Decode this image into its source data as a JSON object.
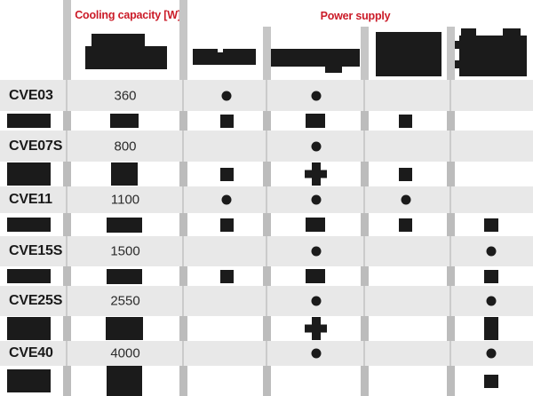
{
  "colors": {
    "accent_red": "#cb1b28",
    "row_gray": "#e8e8e8",
    "ink_black": "#1b1b1b",
    "divider_gray": "#c2c2c2"
  },
  "headers": {
    "capacity_label": "Cooling capacity [W]",
    "power_label": "Power supply"
  },
  "table": {
    "rows": [
      {
        "model": "CVE03",
        "capacity": "360",
        "dots": {
          "c3": true,
          "c4": true,
          "c5": false,
          "c6": false
        },
        "sub": {
          "c1": "bar",
          "c2": "bar",
          "c3": "bar",
          "c4": "bar",
          "c5": "bar",
          "c6": ""
        }
      },
      {
        "model": "CVE07S",
        "capacity": "800",
        "dots": {
          "c3": false,
          "c4": true,
          "c5": false,
          "c6": false
        },
        "sub": {
          "c1": "bar-tall",
          "c2": "bar-tall",
          "c3": "bar",
          "c4": "plus",
          "c5": "bar",
          "c6": ""
        }
      },
      {
        "model": "CVE11",
        "capacity": "1100",
        "dots": {
          "c3": true,
          "c4": true,
          "c5": true,
          "c6": false
        },
        "sub": {
          "c1": "bar",
          "c2": "bar-wide",
          "c3": "bar",
          "c4": "bar",
          "c5": "bar",
          "c6": "bar"
        }
      },
      {
        "model": "CVE15S",
        "capacity": "1500",
        "dots": {
          "c3": false,
          "c4": true,
          "c5": false,
          "c6": true
        },
        "sub": {
          "c1": "bar",
          "c2": "bar-wide",
          "c3": "bar",
          "c4": "bar",
          "c5": "",
          "c6": "bar"
        }
      },
      {
        "model": "CVE25S",
        "capacity": "2550",
        "dots": {
          "c3": false,
          "c4": true,
          "c5": false,
          "c6": true
        },
        "sub": {
          "c1": "bar-tall",
          "c2": "bar-tall-wide",
          "c3": "",
          "c4": "plus",
          "c5": "",
          "c6": "bar-tall"
        }
      },
      {
        "model": "CVE40",
        "capacity": "4000",
        "dots": {
          "c3": false,
          "c4": true,
          "c5": false,
          "c6": true
        },
        "sub": {
          "c1": "bar-tall",
          "c2": "bar-xtall",
          "c3": "",
          "c4": "",
          "c5": "",
          "c6": "bar"
        }
      }
    ]
  }
}
